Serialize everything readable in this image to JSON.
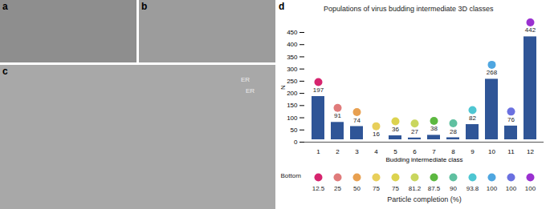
{
  "panels": [
    {
      "label": "a"
    },
    {
      "label": "b"
    },
    {
      "label": "c",
      "annotations": [
        "ER",
        "ER"
      ]
    }
  ],
  "chart_data": {
    "label": "d",
    "type": "bar",
    "title": "Populations of virus budding intermediate 3D classes",
    "x_label": "Budding intermediate class",
    "y_label": "N",
    "categories": [
      "1",
      "2",
      "3",
      "4",
      "5",
      "6",
      "7",
      "8",
      "9",
      "10",
      "11",
      "12"
    ],
    "values": [
      197,
      91,
      74,
      16,
      36,
      27,
      38,
      28,
      82,
      268,
      76,
      442
    ],
    "color": "#2f5597",
    "colors": [
      "#d6246e",
      "#e07b7b",
      "#e8a050",
      "#e8cf5a",
      "#dcd34f",
      "#c9d65e",
      "#5cb840",
      "#5fc0a0",
      "#4ec6d2",
      "#4fa6e0",
      "#6a70e0",
      "#9a30d0"
    ],
    "data_labels": true,
    "ylim": [
      0,
      450
    ],
    "yticks": [
      0,
      50,
      100,
      150,
      200,
      250,
      300,
      350,
      400,
      450
    ],
    "grid": false,
    "bottom_label": "Bottom",
    "particle_completion_label": "Particle completion (%)",
    "particle_completion": [
      12.5,
      25,
      50,
      75,
      75,
      81.2,
      87.5,
      90,
      93.8,
      100,
      100,
      100
    ]
  }
}
